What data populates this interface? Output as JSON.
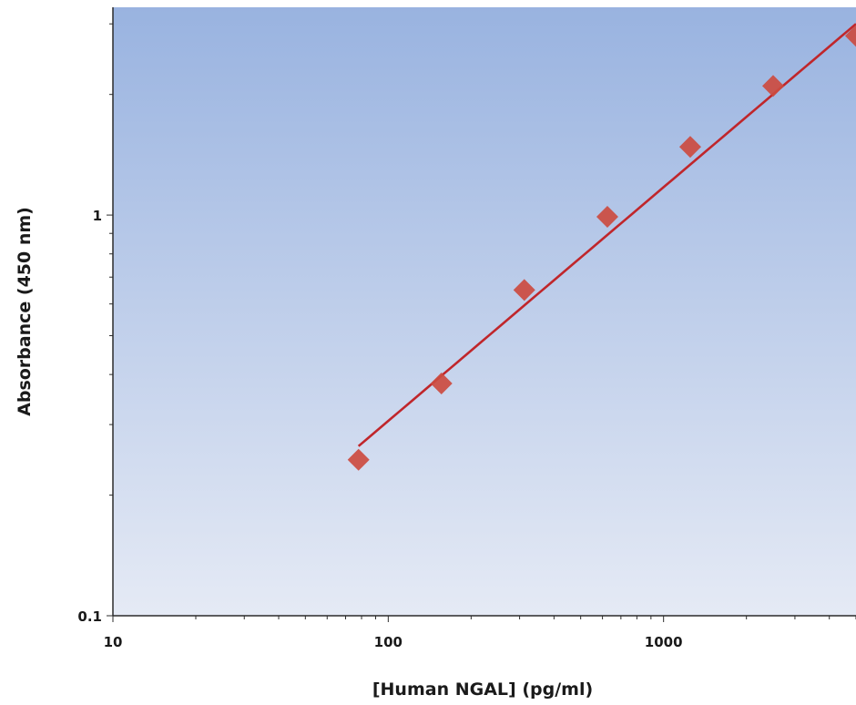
{
  "chart_data": {
    "type": "scatter",
    "title": "",
    "xlabel": "[Human NGAL] (pg/ml)",
    "ylabel": "Absorbance (450 nm)",
    "x_scale": "log",
    "y_scale": "log",
    "xlim": [
      10,
      5000
    ],
    "ylim": [
      0.1,
      3.3
    ],
    "x_tick_labels": [
      "10",
      "100",
      "1000"
    ],
    "x_tick_values": [
      10,
      100,
      1000
    ],
    "y_tick_labels": [
      "0.1",
      "1"
    ],
    "y_tick_values": [
      0.1,
      1
    ],
    "grid": false,
    "legend": "none",
    "series": [
      {
        "x": [
          78,
          156,
          312,
          625,
          1250,
          2500,
          5000
        ],
        "y": [
          0.245,
          0.38,
          0.65,
          0.99,
          1.48,
          2.1,
          2.8
        ],
        "marker": "diamond",
        "color": "#cc4b40"
      }
    ],
    "fit_line": {
      "type": "power",
      "x_range": [
        78,
        5000
      ],
      "y_range": [
        0.265,
        3.0
      ],
      "color": "#c0262b"
    },
    "background_gradient": [
      "#99b3e0",
      "#e5eaf5"
    ]
  }
}
